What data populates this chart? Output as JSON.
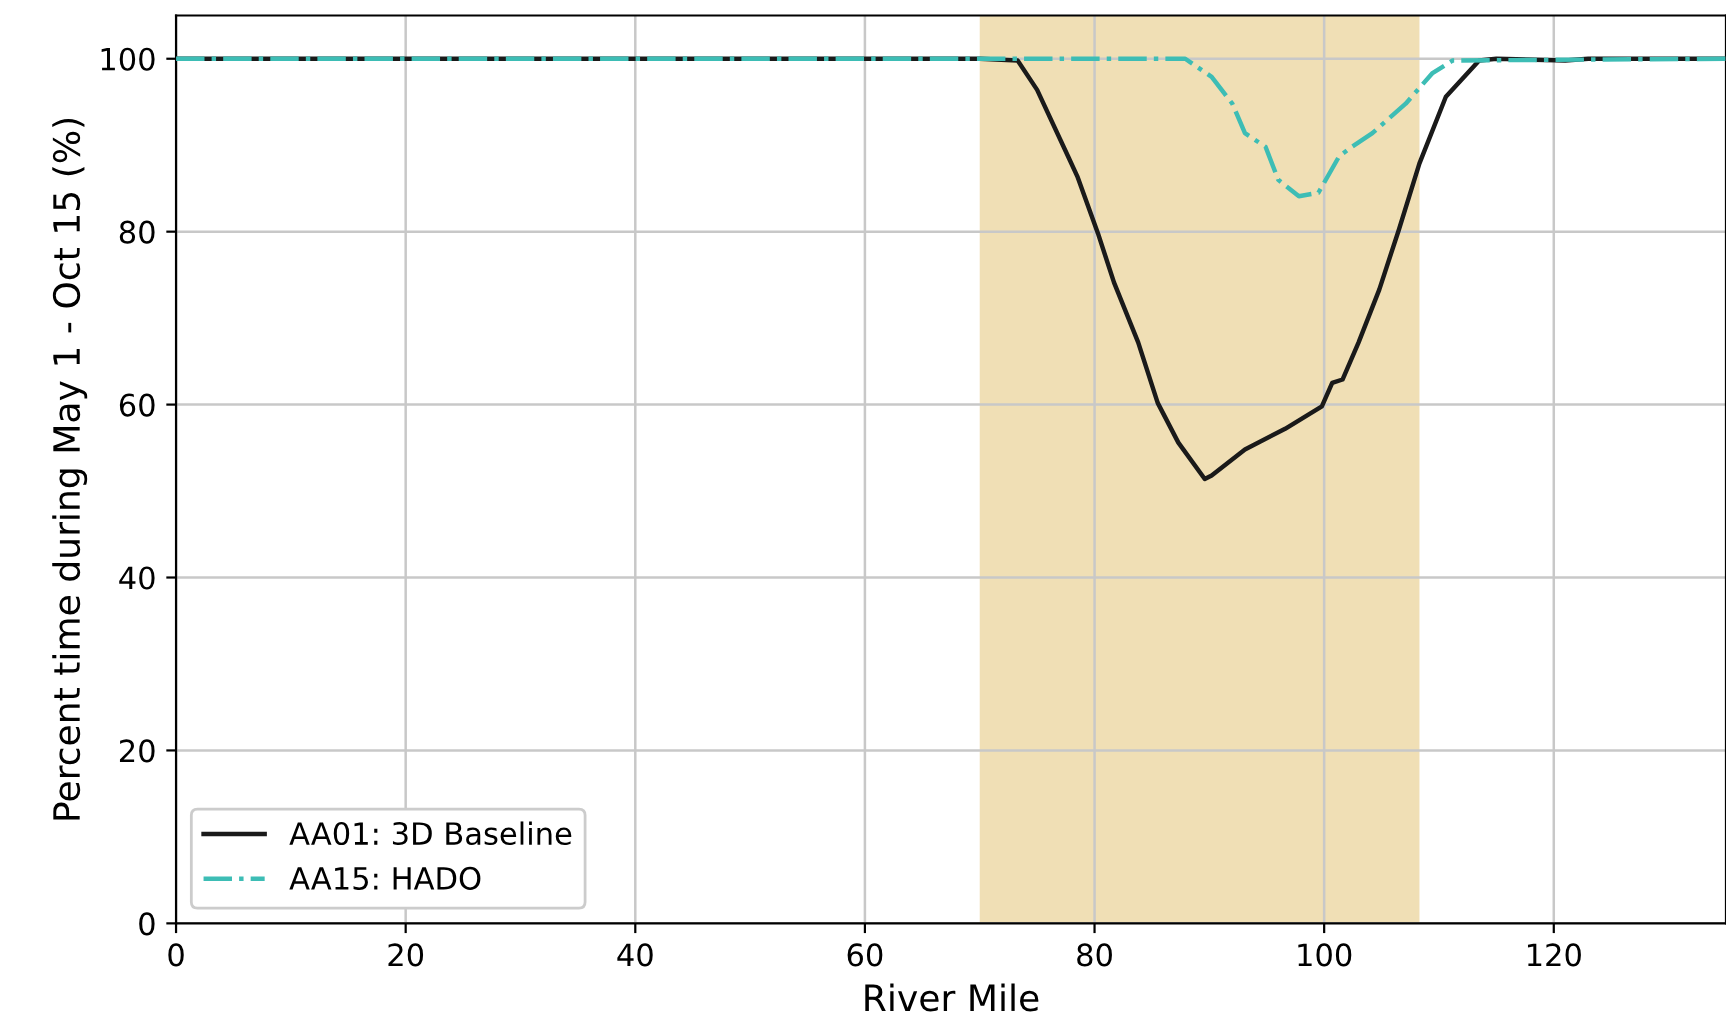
{
  "chart_data": {
    "type": "line",
    "xlabel": "River Mile",
    "ylabel": "Percent time during May 1 - Oct 15 (%)",
    "xlim": [
      0,
      135
    ],
    "ylim": [
      0,
      105
    ],
    "xticks": [
      0,
      20,
      40,
      60,
      80,
      100,
      120
    ],
    "yticks": [
      0,
      20,
      40,
      60,
      80,
      100
    ],
    "grid": true,
    "legend": "bottom left",
    "bands": [
      {
        "axis": "x",
        "from": 70,
        "to": 108.3,
        "color": "#f0dfb5"
      }
    ],
    "series": [
      {
        "name": "AA01: 3D Baseline",
        "color": "#1a1a1a",
        "line_style": "solid",
        "x": [
          0,
          70,
          73.3,
          75.0,
          77.7,
          78.5,
          80.3,
          81.7,
          83.8,
          85.5,
          87.3,
          89.6,
          90.2,
          93.1,
          96.6,
          99.8,
          100.7,
          101.6,
          103.0,
          104.8,
          106.5,
          108.3,
          110.6,
          113.5,
          115,
          121,
          123,
          135
        ],
        "values": [
          100,
          100,
          99.8,
          96.4,
          88.7,
          86.4,
          79.8,
          74.1,
          67.2,
          60.2,
          55.6,
          51.4,
          51.8,
          54.8,
          57.2,
          59.8,
          62.5,
          62.9,
          67.2,
          73.3,
          80.2,
          87.9,
          95.6,
          99.8,
          100,
          99.8,
          100,
          100
        ]
      },
      {
        "name": "AA15: HADO",
        "color": "#3dbdb5",
        "line_style": "dashdot",
        "x": [
          0,
          87.9,
          90.2,
          92.0,
          93.1,
          94.9,
          96.0,
          97.8,
          99.5,
          101.3,
          102.4,
          104.2,
          107.1,
          109.4,
          111.2,
          135
        ],
        "values": [
          100,
          100,
          97.9,
          94.8,
          91.4,
          89.8,
          86.0,
          84.1,
          84.5,
          88.7,
          89.8,
          91.4,
          94.8,
          98.3,
          99.8,
          100
        ]
      }
    ]
  }
}
